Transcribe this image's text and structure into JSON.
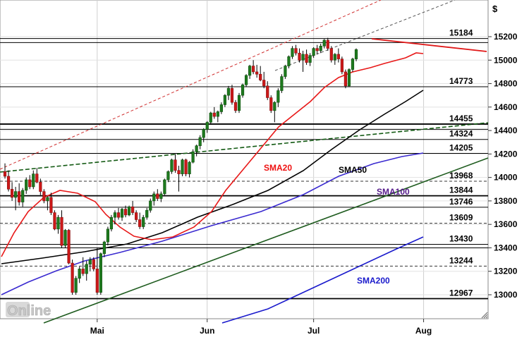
{
  "chart_data": {
    "type": "candlestick",
    "currency_label": "$",
    "y_ticks": [
      13000,
      13200,
      13400,
      13600,
      13800,
      14000,
      14200,
      14400,
      14600,
      14800,
      15000,
      15200
    ],
    "ylim": [
      12800,
      15400
    ],
    "x_ticks": [
      {
        "label": "Mai",
        "day": 27
      },
      {
        "label": "Jun",
        "day": 58
      },
      {
        "label": "Jul",
        "day": 88
      },
      {
        "label": "Aug",
        "day": 119
      }
    ],
    "xlim": [
      0,
      140
    ],
    "grid": true,
    "watermark": "Online",
    "levels": [
      {
        "value": 15184,
        "label": "15184",
        "style": "solid"
      },
      {
        "value": 15150,
        "label": "",
        "style": "solid"
      },
      {
        "value": 14773,
        "label": "14773",
        "style": "solid"
      },
      {
        "value": 14455,
        "label": "14455",
        "style": "solid-heavy"
      },
      {
        "value": 14410,
        "label": "",
        "style": "solid"
      },
      {
        "value": 14324,
        "label": "14324",
        "style": "solid"
      },
      {
        "value": 14205,
        "label": "14205",
        "style": "solid"
      },
      {
        "value": 13968,
        "label": "13968",
        "style": "dashed"
      },
      {
        "value": 13844,
        "label": "13844",
        "style": "solid-heavy"
      },
      {
        "value": 13746,
        "label": "13746",
        "style": "solid"
      },
      {
        "value": 13609,
        "label": "13609",
        "style": "dashed"
      },
      {
        "value": 13430,
        "label": "13430",
        "style": "solid"
      },
      {
        "value": 13400,
        "label": "",
        "style": "solid"
      },
      {
        "value": 13244,
        "label": "13244",
        "style": "dashed"
      },
      {
        "value": 12967,
        "label": "12967",
        "style": "solid-heavy"
      }
    ],
    "ma_labels": [
      {
        "name": "SMA20",
        "color": "#ee1111"
      },
      {
        "name": "SMA50",
        "color": "#000000"
      },
      {
        "name": "SMA100",
        "color": "#551a8b"
      },
      {
        "name": "SMA200",
        "color": "#1a1acc"
      }
    ],
    "candles": [
      [
        14050,
        14120,
        13990,
        14010
      ],
      [
        14010,
        14060,
        13880,
        13900
      ],
      [
        13900,
        13960,
        13800,
        13830
      ],
      [
        13830,
        13920,
        13720,
        13880
      ],
      [
        13880,
        13950,
        13760,
        13790
      ],
      [
        13790,
        13910,
        13750,
        13890
      ],
      [
        13890,
        14000,
        13860,
        13980
      ],
      [
        13980,
        14020,
        13900,
        13920
      ],
      [
        13920,
        14060,
        13900,
        14030
      ],
      [
        14030,
        14080,
        13950,
        13960
      ],
      [
        13960,
        13990,
        13850,
        13880
      ],
      [
        13880,
        13900,
        13780,
        13800
      ],
      [
        13800,
        13840,
        13720,
        13830
      ],
      [
        13830,
        13870,
        13680,
        13700
      ],
      [
        13700,
        13720,
        13550,
        13560
      ],
      [
        13560,
        13680,
        13520,
        13660
      ],
      [
        13660,
        13720,
        13400,
        13420
      ],
      [
        13420,
        13560,
        13400,
        13550
      ],
      [
        13550,
        13560,
        13260,
        13270
      ],
      [
        13270,
        13300,
        13000,
        13020
      ],
      [
        13020,
        13160,
        13000,
        13140
      ],
      [
        13140,
        13240,
        13100,
        13220
      ],
      [
        13220,
        13320,
        13160,
        13180
      ],
      [
        13180,
        13290,
        13120,
        13260
      ],
      [
        13260,
        13320,
        13200,
        13300
      ],
      [
        13300,
        13320,
        13200,
        13220
      ],
      [
        13220,
        13400,
        13000,
        13020
      ],
      [
        13020,
        13360,
        13000,
        13350
      ],
      [
        13350,
        13460,
        13320,
        13450
      ],
      [
        13450,
        13580,
        13420,
        13560
      ],
      [
        13560,
        13680,
        13540,
        13660
      ],
      [
        13660,
        13720,
        13600,
        13700
      ],
      [
        13700,
        13740,
        13640,
        13660
      ],
      [
        13660,
        13740,
        13630,
        13730
      ],
      [
        13730,
        13760,
        13660,
        13680
      ],
      [
        13680,
        13760,
        13670,
        13750
      ],
      [
        13750,
        13800,
        13680,
        13700
      ],
      [
        13700,
        13720,
        13620,
        13640
      ],
      [
        13640,
        13700,
        13560,
        13580
      ],
      [
        13580,
        13680,
        13560,
        13660
      ],
      [
        13660,
        13740,
        13640,
        13720
      ],
      [
        13720,
        13820,
        13700,
        13800
      ],
      [
        13800,
        13880,
        13760,
        13860
      ],
      [
        13860,
        13900,
        13800,
        13820
      ],
      [
        13820,
        13880,
        13790,
        13860
      ],
      [
        13860,
        13990,
        13850,
        13980
      ],
      [
        13980,
        14060,
        13960,
        14050
      ],
      [
        14050,
        14160,
        14030,
        14150
      ],
      [
        14150,
        14200,
        14040,
        14060
      ],
      [
        14060,
        14100,
        13880,
        14030
      ],
      [
        14030,
        14160,
        14010,
        14150
      ],
      [
        14150,
        14160,
        14010,
        14030
      ],
      [
        14030,
        14140,
        14000,
        14130
      ],
      [
        14130,
        14240,
        14120,
        14220
      ],
      [
        14220,
        14280,
        14180,
        14270
      ],
      [
        14270,
        14360,
        14240,
        14340
      ],
      [
        14340,
        14420,
        14300,
        14410
      ],
      [
        14410,
        14480,
        14380,
        14470
      ],
      [
        14470,
        14560,
        14450,
        14550
      ],
      [
        14550,
        14600,
        14500,
        14520
      ],
      [
        14520,
        14570,
        14470,
        14560
      ],
      [
        14560,
        14640,
        14540,
        14620
      ],
      [
        14620,
        14710,
        14600,
        14700
      ],
      [
        14700,
        14780,
        14660,
        14760
      ],
      [
        14760,
        14790,
        14620,
        14640
      ],
      [
        14640,
        14660,
        14550,
        14570
      ],
      [
        14570,
        14720,
        14550,
        14700
      ],
      [
        14700,
        14800,
        14680,
        14790
      ],
      [
        14790,
        14880,
        14770,
        14870
      ],
      [
        14870,
        14960,
        14840,
        14950
      ],
      [
        14950,
        15000,
        14880,
        14900
      ],
      [
        14900,
        14960,
        14850,
        14880
      ],
      [
        14880,
        14950,
        14820,
        14830
      ],
      [
        14830,
        14900,
        14760,
        14780
      ],
      [
        14780,
        14820,
        14660,
        14680
      ],
      [
        14680,
        14700,
        14550,
        14570
      ],
      [
        14570,
        14650,
        14470,
        14640
      ],
      [
        14640,
        14760,
        14600,
        14740
      ],
      [
        14740,
        14880,
        14720,
        14860
      ],
      [
        14860,
        14960,
        14840,
        14950
      ],
      [
        14950,
        15040,
        14930,
        15030
      ],
      [
        15030,
        15120,
        15010,
        15100
      ],
      [
        15100,
        15130,
        15040,
        15060
      ],
      [
        15060,
        15100,
        14980,
        15000
      ],
      [
        15000,
        15080,
        14900,
        15050
      ],
      [
        15050,
        15090,
        14960,
        14980
      ],
      [
        14980,
        15060,
        14950,
        15040
      ],
      [
        15040,
        15110,
        15020,
        15100
      ],
      [
        15100,
        15130,
        15050,
        15080
      ],
      [
        15080,
        15140,
        15060,
        15120
      ],
      [
        15120,
        15180,
        15100,
        15170
      ],
      [
        15170,
        15190,
        15080,
        15100
      ],
      [
        15100,
        15120,
        14980,
        15000
      ],
      [
        15000,
        15060,
        14960,
        15050
      ],
      [
        15050,
        15100,
        14980,
        15010
      ],
      [
        15010,
        15030,
        14880,
        14900
      ],
      [
        14900,
        14920,
        14760,
        14780
      ],
      [
        14780,
        14930,
        14770,
        14920
      ],
      [
        14920,
        15020,
        14900,
        15010
      ],
      [
        15010,
        15100,
        14990,
        15090
      ]
    ]
  }
}
